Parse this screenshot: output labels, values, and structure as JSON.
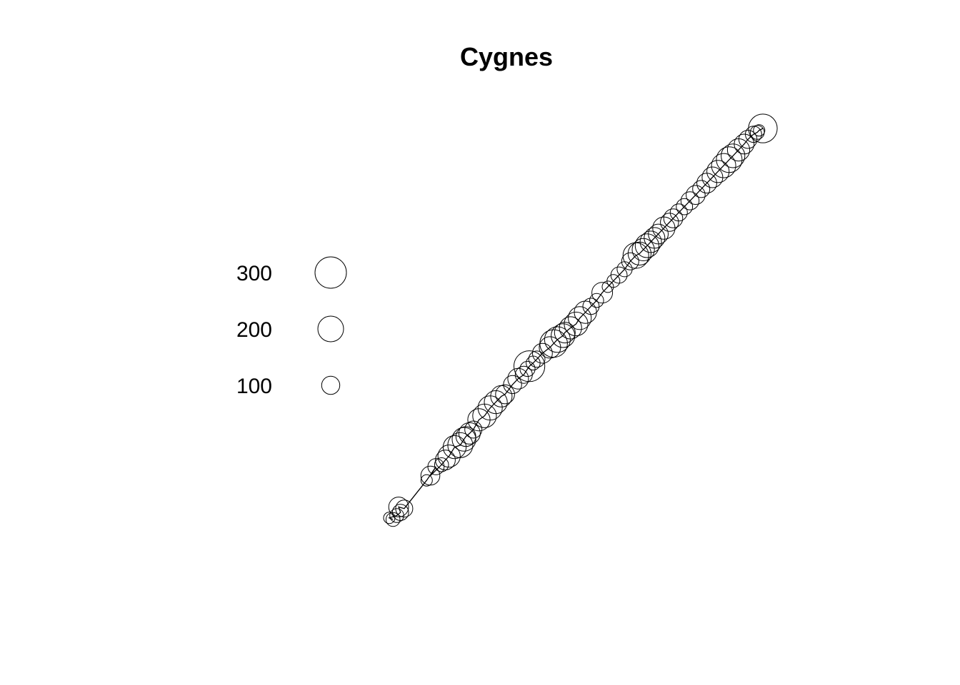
{
  "chart_data": {
    "type": "scatter",
    "title": "Cygnes",
    "xlabel": "",
    "ylabel": "",
    "axes_shown": false,
    "grid": false,
    "marker": "open circle, area proportional to value",
    "line_color": "#000000",
    "legend": {
      "placement": "left",
      "entries": [
        {
          "label": "300",
          "value": 300
        },
        {
          "label": "200",
          "value": 200
        },
        {
          "label": "100",
          "value": 100
        }
      ]
    },
    "path": [
      {
        "x": 0.01,
        "y": 0.0,
        "v": 60
      },
      {
        "x": 0.0,
        "y": 0.004,
        "v": 40
      },
      {
        "x": 0.02,
        "y": 0.01,
        "v": 60
      },
      {
        "x": 0.03,
        "y": 0.018,
        "v": 80
      },
      {
        "x": 0.025,
        "y": 0.032,
        "v": 120
      },
      {
        "x": 0.04,
        "y": 0.028,
        "v": 90
      },
      {
        "x": 0.1,
        "y": 0.1,
        "v": 40
      },
      {
        "x": 0.125,
        "y": 0.135,
        "v": 80
      },
      {
        "x": 0.11,
        "y": 0.112,
        "v": 110
      },
      {
        "x": 0.14,
        "y": 0.14,
        "v": 60
      },
      {
        "x": 0.15,
        "y": 0.152,
        "v": 120
      },
      {
        "x": 0.16,
        "y": 0.162,
        "v": 150
      },
      {
        "x": 0.175,
        "y": 0.185,
        "v": 160
      },
      {
        "x": 0.19,
        "y": 0.19,
        "v": 190
      },
      {
        "x": 0.2,
        "y": 0.205,
        "v": 170
      },
      {
        "x": 0.205,
        "y": 0.212,
        "v": 120
      },
      {
        "x": 0.215,
        "y": 0.22,
        "v": 140
      },
      {
        "x": 0.225,
        "y": 0.23,
        "v": 90
      },
      {
        "x": 0.24,
        "y": 0.255,
        "v": 150
      },
      {
        "x": 0.255,
        "y": 0.265,
        "v": 170
      },
      {
        "x": 0.27,
        "y": 0.285,
        "v": 180
      },
      {
        "x": 0.285,
        "y": 0.3,
        "v": 160
      },
      {
        "x": 0.3,
        "y": 0.315,
        "v": 140
      },
      {
        "x": 0.31,
        "y": 0.32,
        "v": 110
      },
      {
        "x": 0.33,
        "y": 0.345,
        "v": 100
      },
      {
        "x": 0.345,
        "y": 0.36,
        "v": 130
      },
      {
        "x": 0.36,
        "y": 0.37,
        "v": 90
      },
      {
        "x": 0.37,
        "y": 0.385,
        "v": 70
      },
      {
        "x": 0.375,
        "y": 0.392,
        "v": 290
      },
      {
        "x": 0.385,
        "y": 0.4,
        "v": 60
      },
      {
        "x": 0.395,
        "y": 0.41,
        "v": 80
      },
      {
        "x": 0.41,
        "y": 0.425,
        "v": 120
      },
      {
        "x": 0.43,
        "y": 0.44,
        "v": 140
      },
      {
        "x": 0.44,
        "y": 0.45,
        "v": 230
      },
      {
        "x": 0.45,
        "y": 0.46,
        "v": 200
      },
      {
        "x": 0.465,
        "y": 0.47,
        "v": 170
      },
      {
        "x": 0.47,
        "y": 0.478,
        "v": 130
      },
      {
        "x": 0.485,
        "y": 0.49,
        "v": 150
      },
      {
        "x": 0.5,
        "y": 0.5,
        "v": 170
      },
      {
        "x": 0.51,
        "y": 0.515,
        "v": 160
      },
      {
        "x": 0.525,
        "y": 0.53,
        "v": 150
      },
      {
        "x": 0.54,
        "y": 0.545,
        "v": 80
      },
      {
        "x": 0.555,
        "y": 0.56,
        "v": 60
      },
      {
        "x": 0.57,
        "y": 0.58,
        "v": 130
      },
      {
        "x": 0.585,
        "y": 0.595,
        "v": 40
      },
      {
        "x": 0.6,
        "y": 0.61,
        "v": 50
      },
      {
        "x": 0.615,
        "y": 0.625,
        "v": 80
      },
      {
        "x": 0.63,
        "y": 0.64,
        "v": 70
      },
      {
        "x": 0.645,
        "y": 0.66,
        "v": 90
      },
      {
        "x": 0.66,
        "y": 0.675,
        "v": 200
      },
      {
        "x": 0.67,
        "y": 0.68,
        "v": 160
      },
      {
        "x": 0.68,
        "y": 0.69,
        "v": 150
      },
      {
        "x": 0.69,
        "y": 0.7,
        "v": 170
      },
      {
        "x": 0.7,
        "y": 0.71,
        "v": 140
      },
      {
        "x": 0.71,
        "y": 0.72,
        "v": 130
      },
      {
        "x": 0.72,
        "y": 0.73,
        "v": 120
      },
      {
        "x": 0.735,
        "y": 0.745,
        "v": 150
      },
      {
        "x": 0.75,
        "y": 0.76,
        "v": 100
      },
      {
        "x": 0.76,
        "y": 0.77,
        "v": 110
      },
      {
        "x": 0.775,
        "y": 0.785,
        "v": 90
      },
      {
        "x": 0.79,
        "y": 0.8,
        "v": 80
      },
      {
        "x": 0.805,
        "y": 0.815,
        "v": 100
      },
      {
        "x": 0.82,
        "y": 0.83,
        "v": 110
      },
      {
        "x": 0.835,
        "y": 0.845,
        "v": 90
      },
      {
        "x": 0.85,
        "y": 0.86,
        "v": 120
      },
      {
        "x": 0.865,
        "y": 0.875,
        "v": 130
      },
      {
        "x": 0.88,
        "y": 0.89,
        "v": 150
      },
      {
        "x": 0.895,
        "y": 0.905,
        "v": 180
      },
      {
        "x": 0.91,
        "y": 0.92,
        "v": 200
      },
      {
        "x": 0.92,
        "y": 0.93,
        "v": 170
      },
      {
        "x": 0.935,
        "y": 0.945,
        "v": 150
      },
      {
        "x": 0.95,
        "y": 0.96,
        "v": 120
      },
      {
        "x": 0.96,
        "y": 0.972,
        "v": 100
      },
      {
        "x": 0.975,
        "y": 0.985,
        "v": 80
      },
      {
        "x": 0.985,
        "y": 0.99,
        "v": 60
      },
      {
        "x": 0.99,
        "y": 0.995,
        "v": 40
      },
      {
        "x": 1.0,
        "y": 1.0,
        "v": 250
      }
    ]
  }
}
